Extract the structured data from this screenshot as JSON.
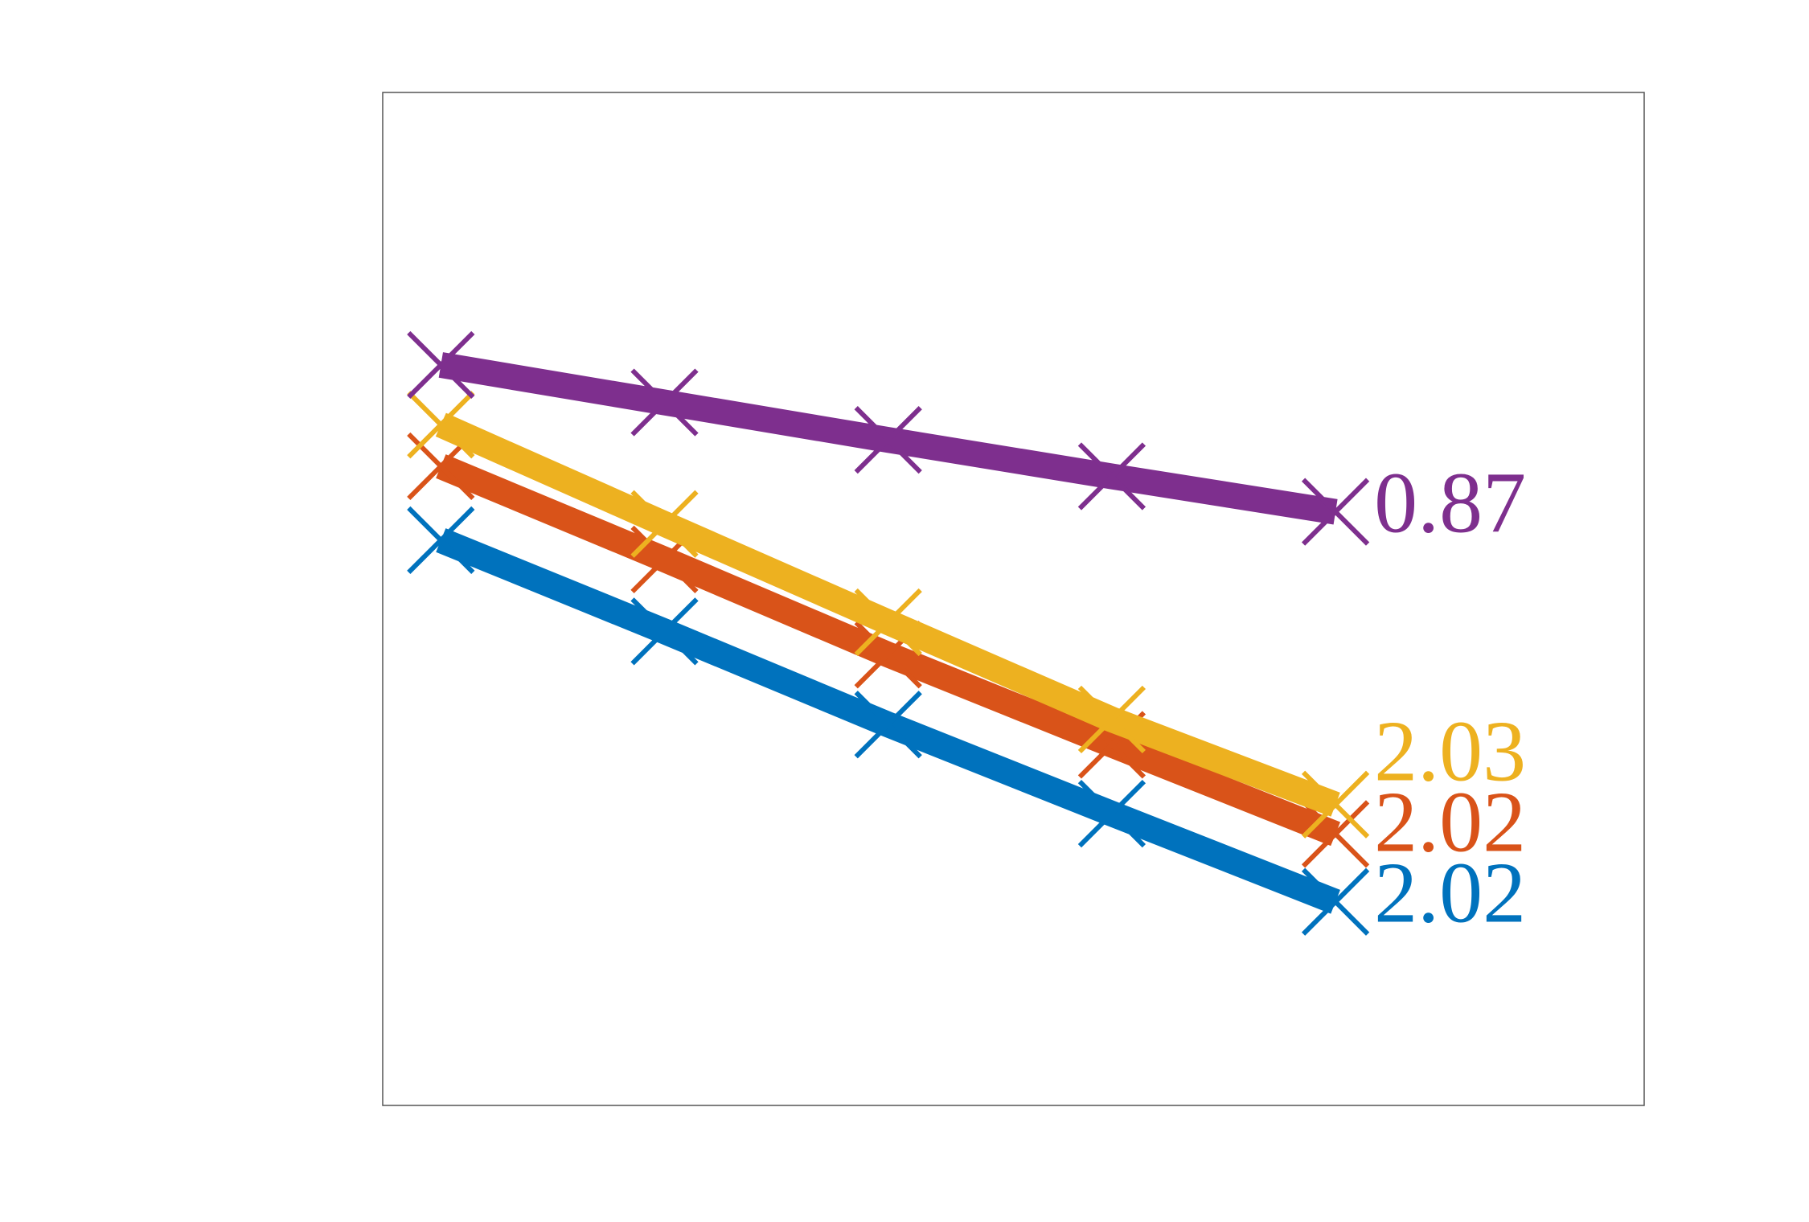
{
  "chart_data": {
    "type": "line",
    "x": [
      1,
      2,
      3,
      4,
      5
    ],
    "xlim": [
      0.74,
      6.38
    ],
    "ylim": [
      0,
      10
    ],
    "series": [
      {
        "name": "blue",
        "color": "#0072bd",
        "values": [
          5.58,
          4.68,
          3.76,
          2.88,
          2.01
        ],
        "label": "2.02"
      },
      {
        "name": "orange",
        "color": "#d95319",
        "values": [
          6.31,
          5.39,
          4.45,
          3.56,
          2.68
        ],
        "label": "2.02"
      },
      {
        "name": "yellow",
        "color": "#edb120",
        "values": [
          6.72,
          5.74,
          4.77,
          3.81,
          2.97
        ],
        "label": "2.03"
      },
      {
        "name": "purple",
        "color": "#7e2f8e",
        "values": [
          7.31,
          6.94,
          6.57,
          6.21,
          5.86
        ],
        "label": "0.87"
      }
    ]
  }
}
